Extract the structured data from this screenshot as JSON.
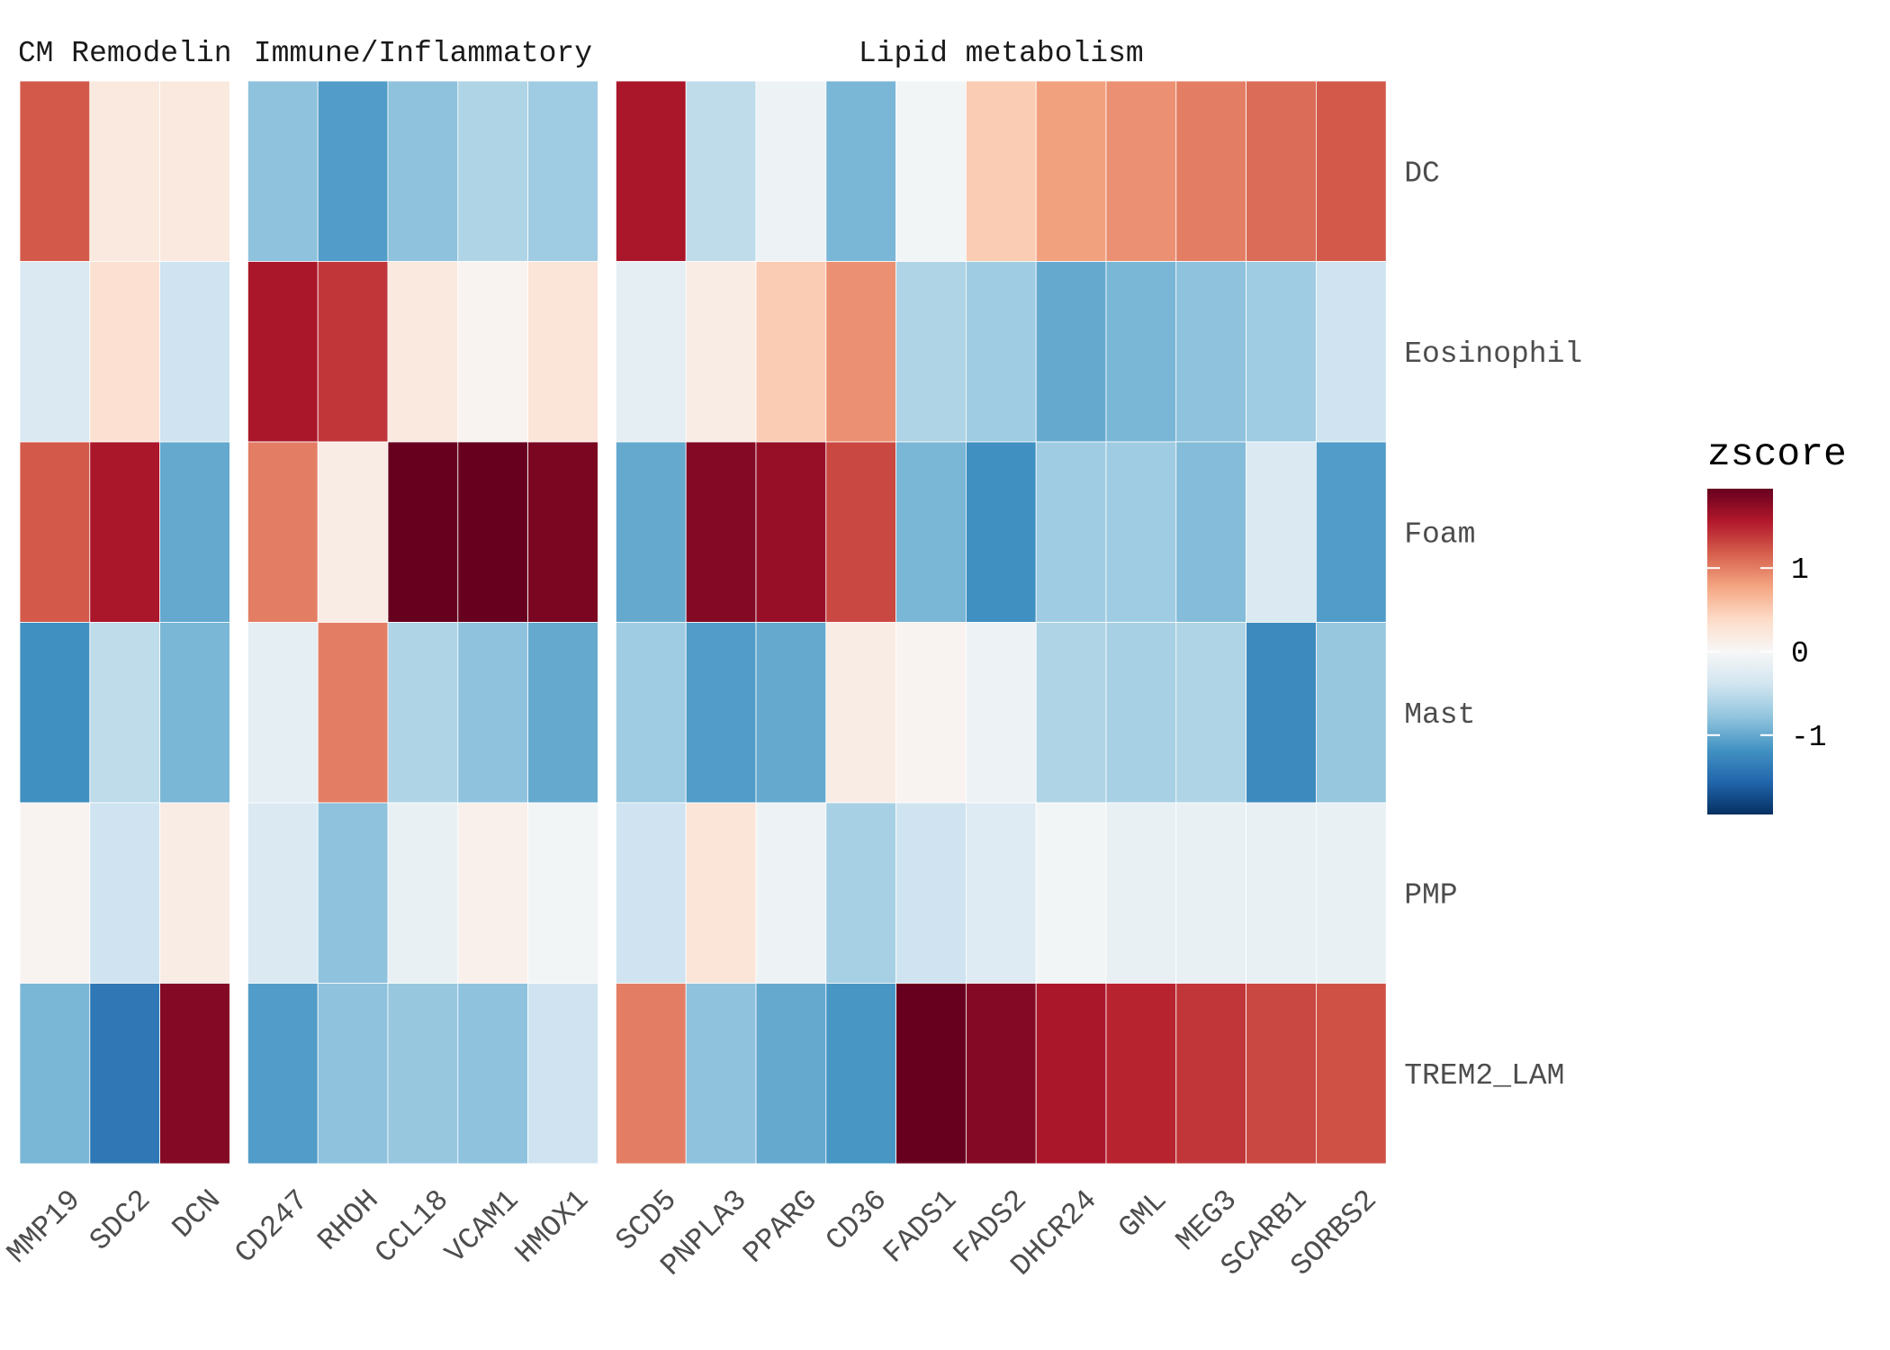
{
  "chart_data": {
    "type": "heatmap",
    "rows": [
      "DC",
      "Eosinophil",
      "Foam",
      "Mast",
      "PMP",
      "TREM2_LAM"
    ],
    "facets": [
      {
        "title": "ECM Remodeling",
        "columns": [
          "MMP19",
          "SDC2",
          "DCN"
        ],
        "values": [
          [
            1.2,
            0.2,
            0.2
          ],
          [
            -0.3,
            0.3,
            -0.4
          ],
          [
            1.2,
            1.6,
            -1.0
          ],
          [
            -1.2,
            -0.5,
            -0.9
          ],
          [
            0.05,
            -0.4,
            0.15
          ],
          [
            -0.9,
            -1.4,
            1.8
          ]
        ]
      },
      {
        "title": "Immune/Inflammatory",
        "columns": [
          "CD247",
          "RHOH",
          "CCL18",
          "VCAM1",
          "HMOX1"
        ],
        "values": [
          [
            -0.8,
            -1.1,
            -0.8,
            -0.6,
            -0.7
          ],
          [
            1.6,
            1.4,
            0.2,
            0.05,
            0.25
          ],
          [
            1.0,
            0.15,
            1.95,
            1.95,
            1.85
          ],
          [
            -0.2,
            1.0,
            -0.6,
            -0.8,
            -1.0
          ],
          [
            -0.3,
            -0.8,
            -0.15,
            0.1,
            -0.05
          ],
          [
            -1.1,
            -0.8,
            -0.75,
            -0.8,
            -0.4
          ]
        ]
      },
      {
        "title": "Lipid metabolism",
        "columns": [
          "SCD5",
          "PNPLA3",
          "PPARG",
          "CD36",
          "FADS1",
          "FADS2",
          "DHCR24",
          "GML",
          "MEG3",
          "SCARB1",
          "SORBS2"
        ],
        "values": [
          [
            1.6,
            -0.5,
            -0.1,
            -0.9,
            -0.05,
            0.5,
            0.8,
            0.9,
            1.0,
            1.1,
            1.2
          ],
          [
            -0.2,
            0.15,
            0.5,
            0.9,
            -0.6,
            -0.7,
            -1.0,
            -0.9,
            -0.8,
            -0.7,
            -0.4
          ],
          [
            -1.0,
            1.8,
            1.7,
            1.3,
            -0.9,
            -1.2,
            -0.7,
            -0.7,
            -0.85,
            -0.3,
            -1.1
          ],
          [
            -0.7,
            -1.1,
            -1.0,
            0.15,
            0.05,
            -0.1,
            -0.6,
            -0.65,
            -0.6,
            -1.25,
            -0.75
          ],
          [
            -0.4,
            0.25,
            -0.1,
            -0.65,
            -0.4,
            -0.25,
            -0.05,
            -0.15,
            -0.15,
            -0.15,
            -0.15
          ],
          [
            1.0,
            -0.8,
            -1.0,
            -1.15,
            2.0,
            1.8,
            1.6,
            1.5,
            1.4,
            1.3,
            1.25
          ]
        ]
      }
    ],
    "legend": {
      "title": "zscore",
      "ticks": [
        "1",
        "0",
        "-1"
      ],
      "tick_values": [
        1,
        0,
        -1
      ],
      "range": [
        -1.95,
        1.95
      ],
      "placement": "right"
    },
    "palette": [
      "#053061",
      "#2166ac",
      "#4393c3",
      "#92c5de",
      "#d1e5f0",
      "#f7f7f7",
      "#fddbc7",
      "#f4a582",
      "#d6604d",
      "#b2182b",
      "#67001f"
    ],
    "grid": false
  }
}
